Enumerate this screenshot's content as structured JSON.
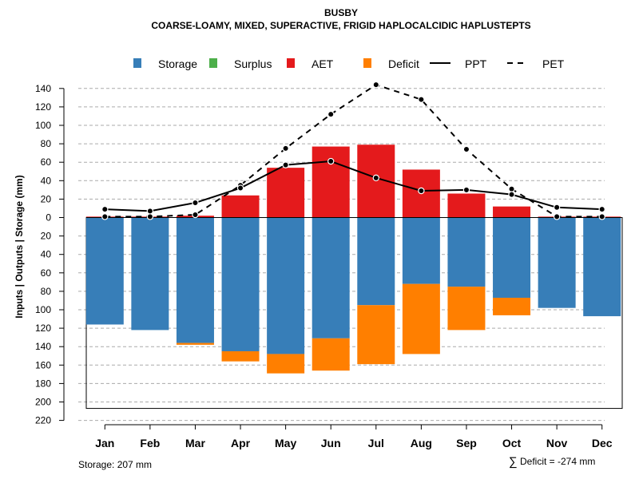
{
  "chart_data": {
    "type": "bar",
    "title": "BUSBY",
    "subtitle": "COARSE-LOAMY, MIXED, SUPERACTIVE, FRIGID HAPLOCALCIDIC HAPLUSTEPTS",
    "ylabel": "Inputs | Outputs | Storage     (mm)",
    "ylim": [
      -220,
      150
    ],
    "yticks": [
      -220,
      -200,
      -180,
      -160,
      -140,
      -120,
      -100,
      -80,
      -60,
      -40,
      -20,
      0,
      20,
      40,
      60,
      80,
      100,
      120,
      140
    ],
    "ytick_labels": [
      "220",
      "200",
      "180",
      "160",
      "140",
      "120",
      "100",
      "80",
      "60",
      "40",
      "20",
      "0",
      "20",
      "40",
      "60",
      "80",
      "100",
      "120",
      "140"
    ],
    "grid": true,
    "categories": [
      "Jan",
      "Feb",
      "Mar",
      "Apr",
      "May",
      "Jun",
      "Jul",
      "Aug",
      "Sep",
      "Oct",
      "Nov",
      "Dec"
    ],
    "legend": [
      {
        "label": "Storage",
        "color": "#377EB8",
        "kind": "box"
      },
      {
        "label": "Surplus",
        "color": "#4DAF4A",
        "kind": "box"
      },
      {
        "label": "AET",
        "color": "#E41A1C",
        "kind": "box"
      },
      {
        "label": "Deficit",
        "color": "#FF7F00",
        "kind": "box"
      },
      {
        "label": "PPT",
        "color": "#000000",
        "kind": "solid"
      },
      {
        "label": "PET",
        "color": "#000000",
        "kind": "dashed"
      }
    ],
    "series": [
      {
        "name": "Storage",
        "color": "#377EB8",
        "values": [
          116,
          122,
          136,
          145,
          148,
          131,
          95,
          72,
          75,
          87,
          98,
          107
        ]
      },
      {
        "name": "Surplus",
        "color": "#4DAF4A",
        "values": [
          0,
          0,
          0,
          0,
          0,
          0,
          0,
          0,
          0,
          0,
          0,
          0
        ]
      },
      {
        "name": "AET",
        "color": "#E41A1C",
        "values": [
          1,
          1,
          2,
          24,
          54,
          77,
          79,
          52,
          26,
          12,
          1,
          1
        ]
      },
      {
        "name": "Deficit",
        "color": "#FF7F00",
        "values": [
          0,
          0,
          2,
          11,
          21,
          35,
          64,
          76,
          47,
          19,
          0,
          0
        ]
      },
      {
        "name": "PPT",
        "color": "#000000",
        "values": [
          9,
          7,
          16,
          32,
          57,
          61,
          43,
          29,
          30,
          25,
          11,
          9
        ]
      },
      {
        "name": "PET",
        "color": "#000000",
        "values": [
          1,
          1,
          3,
          35,
          75,
          112,
          144,
          128,
          74,
          31,
          1,
          1
        ]
      }
    ],
    "storage_capacity": 207,
    "footer_left": "Storage: 207 mm",
    "footer_right_symbol": "∑",
    "footer_right": "Deficit = -274 mm"
  }
}
